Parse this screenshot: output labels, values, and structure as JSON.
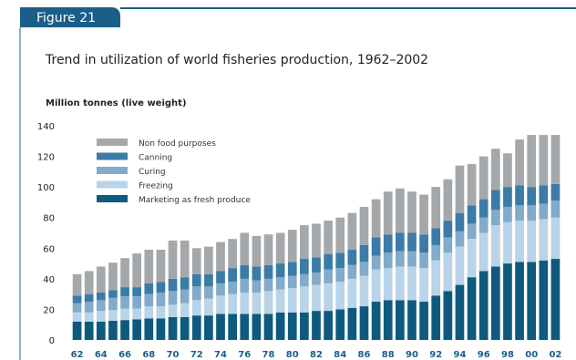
{
  "figure_label": "Figure 21",
  "chart_data": {
    "type": "bar",
    "stacked": true,
    "title": "Trend in utilization of world fisheries production, 1962–2002",
    "ylabel": "Million tonnes (live weight)",
    "xlabel": "",
    "ylim": [
      0,
      140
    ],
    "yticks": [
      0,
      20,
      40,
      60,
      80,
      100,
      120,
      140
    ],
    "grid": false,
    "legend_position": "top-left",
    "categories": [
      "62",
      "63",
      "64",
      "65",
      "66",
      "67",
      "68",
      "69",
      "70",
      "71",
      "72",
      "73",
      "74",
      "75",
      "76",
      "77",
      "78",
      "79",
      "80",
      "81",
      "82",
      "83",
      "84",
      "85",
      "86",
      "87",
      "88",
      "89",
      "90",
      "91",
      "92",
      "93",
      "94",
      "95",
      "96",
      "97",
      "98",
      "99",
      "00",
      "01",
      "02"
    ],
    "xtick_labels": [
      "62",
      "64",
      "66",
      "68",
      "70",
      "72",
      "74",
      "76",
      "78",
      "80",
      "82",
      "84",
      "86",
      "88",
      "90",
      "92",
      "94",
      "96",
      "98",
      "00",
      "02"
    ],
    "series": [
      {
        "name": "Marketing as fresh produce",
        "color": "#0e5a7e",
        "values": [
          12,
          12,
          12,
          12.5,
          13,
          13.5,
          14,
          14,
          15,
          15,
          16,
          16,
          17,
          17,
          17,
          17,
          17,
          18,
          18,
          18,
          19,
          19,
          20,
          21,
          22,
          25,
          26,
          26,
          26,
          25,
          29,
          32,
          36,
          41,
          45,
          48,
          50,
          51,
          51,
          52,
          53
        ]
      },
      {
        "name": "Freezing",
        "color": "#b9d3e8",
        "values": [
          6,
          6,
          7,
          7,
          7.5,
          7,
          8,
          8,
          8,
          9,
          10,
          11,
          12,
          13,
          14,
          14,
          15,
          15,
          16,
          17,
          17,
          18,
          18,
          19,
          20,
          21,
          21,
          22,
          22,
          22,
          23,
          25,
          25,
          25,
          25,
          27,
          27,
          27,
          27,
          27,
          27
        ]
      },
      {
        "name": "Curing",
        "color": "#82aac9",
        "values": [
          6,
          7,
          7,
          8,
          8,
          8,
          8,
          9,
          9,
          9,
          9,
          8,
          8,
          8,
          9,
          8,
          8,
          8,
          8,
          8,
          8,
          9,
          9,
          9,
          9,
          9,
          10,
          10,
          10,
          10,
          10,
          10,
          10,
          10,
          10,
          10,
          10,
          10,
          10,
          10,
          11
        ]
      },
      {
        "name": "Canning",
        "color": "#3b7ba7",
        "values": [
          5,
          5,
          5,
          5,
          6,
          6,
          7,
          7,
          8,
          8,
          8,
          8,
          8,
          9,
          9,
          9,
          9,
          9,
          9,
          10,
          10,
          10,
          10,
          10,
          11,
          12,
          12,
          12,
          12,
          12,
          11,
          11,
          12,
          12,
          12,
          13,
          13,
          13,
          12,
          12,
          11
        ]
      },
      {
        "name": "Non food purposes",
        "color": "#a5a8ab",
        "values": [
          14,
          15,
          17,
          18,
          19,
          22,
          22,
          21,
          25,
          24,
          17,
          18,
          19,
          19,
          21,
          20,
          20,
          20,
          21,
          22,
          22,
          22,
          23,
          24,
          25,
          25,
          28,
          29,
          27,
          26,
          27,
          27,
          31,
          27,
          28,
          27,
          22,
          30,
          34,
          33,
          32
        ]
      }
    ]
  }
}
